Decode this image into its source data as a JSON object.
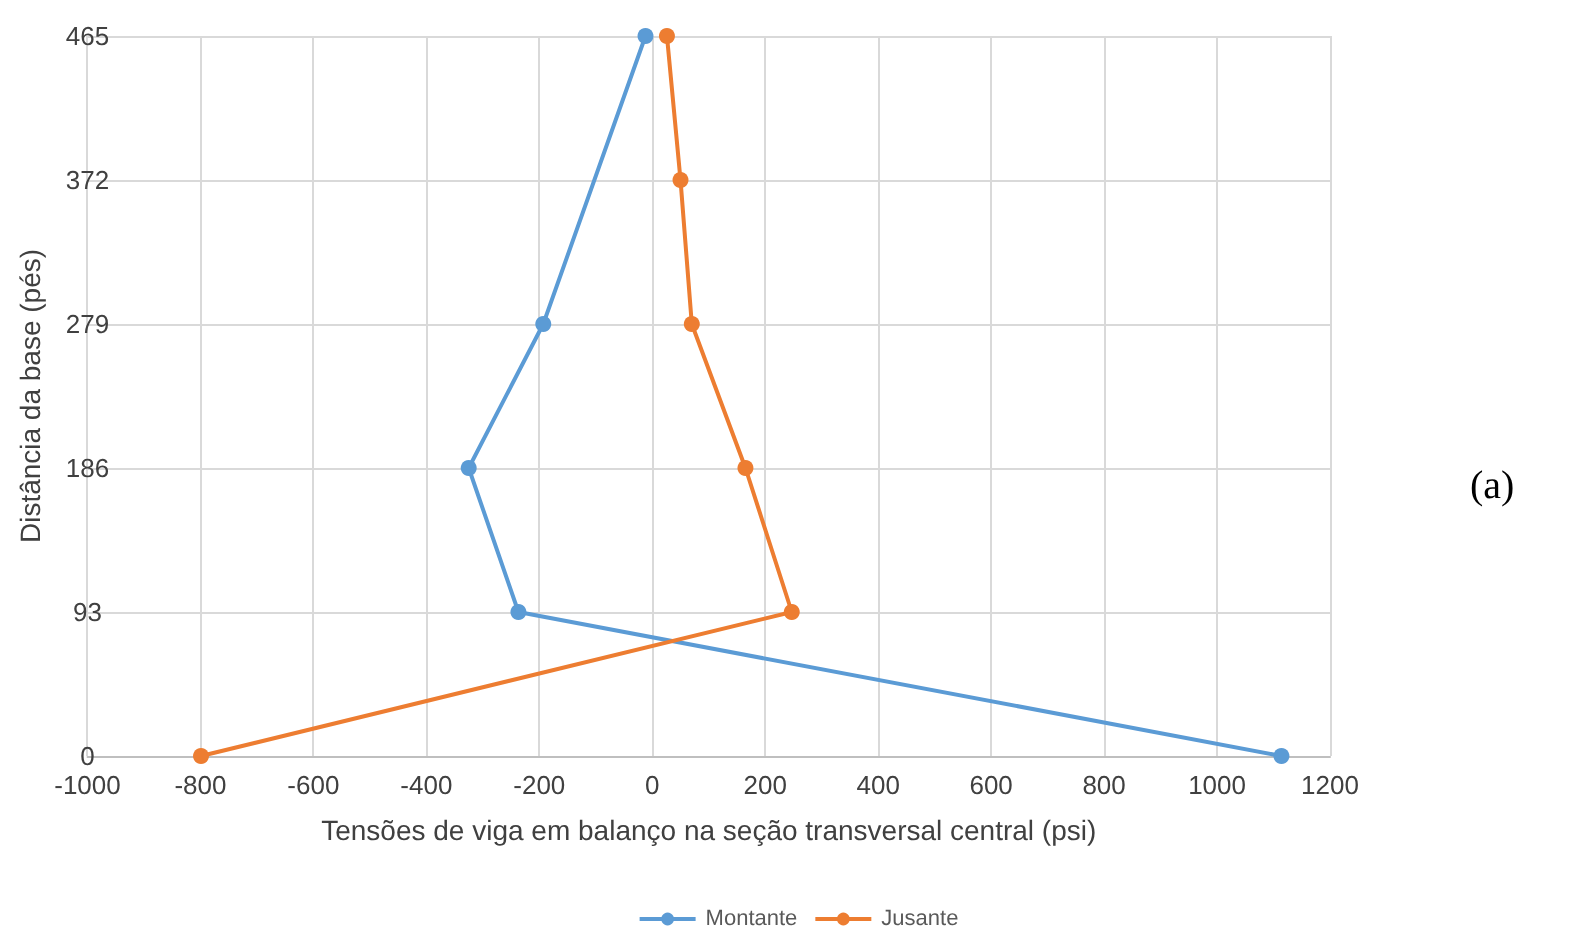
{
  "chart_data": {
    "type": "line",
    "xlabel": "Tensões de viga em balanço na seção transversal central (psi)",
    "ylabel": "Distância da base (pés)",
    "annotations": [
      "(a)"
    ],
    "series": [
      {
        "name": "Montante",
        "color": "#5b9bd5",
        "x": [
          1114,
          -237,
          -325,
          -193,
          -12
        ],
        "values": [
          0,
          93,
          186,
          279,
          465
        ]
      },
      {
        "name": "Jusante",
        "color": "#ed7d31",
        "x": [
          -799,
          247,
          165,
          70,
          50,
          26
        ],
        "values": [
          0,
          93,
          186,
          279,
          372,
          465
        ]
      }
    ],
    "xlim": [
      -1000,
      1200
    ],
    "xticks": [
      -1000,
      -800,
      -600,
      -400,
      -200,
      0,
      200,
      400,
      600,
      800,
      1000,
      1200
    ],
    "ylim": [
      0,
      465
    ],
    "yticks": [
      0,
      93,
      186,
      279,
      372,
      465
    ],
    "grid": true,
    "legend": "bottom",
    "marker": "circle",
    "line_style": "solid"
  }
}
